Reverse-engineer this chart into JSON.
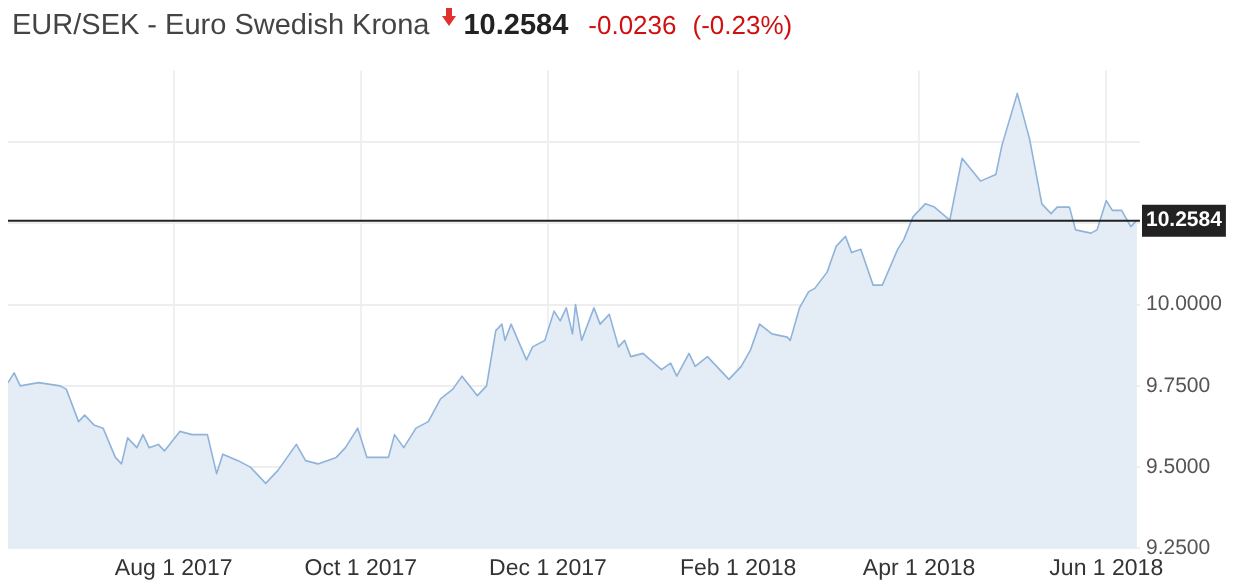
{
  "chart_data": {
    "type": "area",
    "title": "EUR/SEK - Euro Swedish Krona",
    "annotations": [
      "10.2584",
      "-0.0236",
      "(-0.23%)"
    ],
    "x": [
      "2017-06-08",
      "2017-06-10",
      "2017-06-12",
      "2017-06-18",
      "2017-06-25",
      "2017-06-27",
      "2017-07-01",
      "2017-07-03",
      "2017-07-06",
      "2017-07-09",
      "2017-07-13",
      "2017-07-15",
      "2017-07-17",
      "2017-07-20",
      "2017-07-22",
      "2017-07-24",
      "2017-07-27",
      "2017-07-29",
      "2017-08-03",
      "2017-08-07",
      "2017-08-12",
      "2017-08-15",
      "2017-08-17",
      "2017-08-22",
      "2017-08-26",
      "2017-08-31",
      "2017-09-04",
      "2017-09-10",
      "2017-09-13",
      "2017-09-17",
      "2017-09-23",
      "2017-09-26",
      "2017-09-30",
      "2017-10-03",
      "2017-10-10",
      "2017-10-12",
      "2017-10-15",
      "2017-10-19",
      "2017-10-23",
      "2017-10-27",
      "2017-10-31",
      "2017-11-03",
      "2017-11-08",
      "2017-11-11",
      "2017-11-14",
      "2017-11-16",
      "2017-11-17",
      "2017-11-19",
      "2017-11-24",
      "2017-11-26",
      "2017-11-30",
      "2017-12-03",
      "2017-12-05",
      "2017-12-07",
      "2017-12-09",
      "2017-12-10",
      "2017-12-12",
      "2017-12-16",
      "2017-12-18",
      "2017-12-21",
      "2017-12-24",
      "2017-12-26",
      "2017-12-28",
      "2018-01-01",
      "2018-01-07",
      "2018-01-10",
      "2018-01-12",
      "2018-01-16",
      "2018-01-18",
      "2018-01-22",
      "2018-01-29",
      "2018-02-02",
      "2018-02-05",
      "2018-02-08",
      "2018-02-12",
      "2018-02-17",
      "2018-02-18",
      "2018-02-21",
      "2018-02-24",
      "2018-02-26",
      "2018-03-02",
      "2018-03-05",
      "2018-03-08",
      "2018-03-10",
      "2018-03-13",
      "2018-03-17",
      "2018-03-20",
      "2018-03-25",
      "2018-03-27",
      "2018-03-30",
      "2018-04-03",
      "2018-04-06",
      "2018-04-11",
      "2018-04-15",
      "2018-04-21",
      "2018-04-26",
      "2018-04-28",
      "2018-05-03",
      "2018-05-07",
      "2018-05-11",
      "2018-05-14",
      "2018-05-16",
      "2018-05-20",
      "2018-05-22",
      "2018-05-27",
      "2018-05-29",
      "2018-06-01",
      "2018-06-03",
      "2018-06-06",
      "2018-06-09",
      "2018-06-11"
    ],
    "series": [
      {
        "color": "#8fb3da",
        "values": [
          9.76,
          9.79,
          9.75,
          9.76,
          9.75,
          9.74,
          9.64,
          9.66,
          9.63,
          9.62,
          9.53,
          9.51,
          9.59,
          9.56,
          9.6,
          9.56,
          9.57,
          9.55,
          9.61,
          9.6,
          9.6,
          9.48,
          9.54,
          9.52,
          9.5,
          9.45,
          9.49,
          9.57,
          9.52,
          9.51,
          9.53,
          9.56,
          9.62,
          9.53,
          9.53,
          9.6,
          9.56,
          9.62,
          9.64,
          9.71,
          9.74,
          9.78,
          9.72,
          9.75,
          9.92,
          9.94,
          9.89,
          9.94,
          9.83,
          9.87,
          9.89,
          9.98,
          9.95,
          9.99,
          9.91,
          10.0,
          9.89,
          9.99,
          9.94,
          9.97,
          9.87,
          9.89,
          9.84,
          9.85,
          9.8,
          9.82,
          9.78,
          9.85,
          9.81,
          9.84,
          9.77,
          9.81,
          9.86,
          9.94,
          9.91,
          9.9,
          9.89,
          9.99,
          10.04,
          10.05,
          10.1,
          10.18,
          10.21,
          10.16,
          10.17,
          10.06,
          10.06,
          10.17,
          10.2,
          10.27,
          10.31,
          10.3,
          10.26,
          10.45,
          10.38,
          10.4,
          10.49,
          10.65,
          10.51,
          10.31,
          10.28,
          10.3,
          10.3,
          10.23,
          10.22,
          10.23,
          10.32,
          10.29,
          10.29,
          10.24,
          10.26
        ]
      }
    ],
    "xlim": [
      "2017-06-08",
      "2018-06-12"
    ],
    "xticks": [
      {
        "value": "2017-08-01",
        "label": "Aug 1 2017"
      },
      {
        "value": "2017-10-01",
        "label": "Oct 1 2017"
      },
      {
        "value": "2017-12-01",
        "label": "Dec 1 2017"
      },
      {
        "value": "2018-02-01",
        "label": "Feb 1 2018"
      },
      {
        "value": "2018-04-01",
        "label": "Apr 1 2018"
      },
      {
        "value": "2018-06-01",
        "label": "Jun 1 2018"
      }
    ],
    "ylim": [
      9.25,
      10.72
    ],
    "yticks": [
      {
        "value": 9.25,
        "label": "9.2500"
      },
      {
        "value": 9.5,
        "label": "9.5000"
      },
      {
        "value": 9.75,
        "label": "9.7500"
      },
      {
        "value": 10,
        "label": "10.0000"
      },
      {
        "value": 10.25,
        "label": null
      },
      {
        "value": 10.5,
        "label": null
      }
    ],
    "ref_lines": [
      {
        "axis": "y",
        "value": 10.2584,
        "label": "10.2584",
        "color": "#222222"
      }
    ],
    "grid": true
  }
}
